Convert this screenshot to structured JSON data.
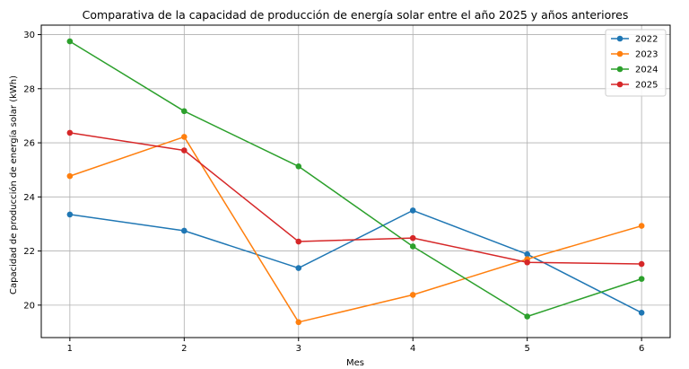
{
  "chart_data": {
    "type": "line",
    "title": "Comparativa de la capacidad de producción de energía solar entre el año 2025 y años anteriores",
    "xlabel": "Mes",
    "ylabel": "Capacidad de producción de energía solar (kWh)",
    "x": [
      1,
      2,
      3,
      4,
      5,
      6
    ],
    "xlim": [
      0.75,
      6.25
    ],
    "ylim": [
      18.8,
      30.35
    ],
    "xticks": [
      1,
      2,
      3,
      4,
      5,
      6
    ],
    "yticks": [
      20,
      22,
      24,
      26,
      28,
      30
    ],
    "grid": true,
    "legend_position": "top-right",
    "series": [
      {
        "name": "2022",
        "color": "#1f77b4",
        "values": [
          23.35,
          22.75,
          21.37,
          23.5,
          21.88,
          19.72
        ]
      },
      {
        "name": "2023",
        "color": "#ff7f0e",
        "values": [
          24.77,
          26.22,
          19.37,
          20.38,
          21.7,
          22.93
        ]
      },
      {
        "name": "2024",
        "color": "#2ca02c",
        "values": [
          29.75,
          27.17,
          25.13,
          22.17,
          19.58,
          20.97
        ]
      },
      {
        "name": "2025",
        "color": "#d62728",
        "values": [
          26.37,
          25.72,
          22.35,
          22.48,
          21.58,
          21.52
        ]
      }
    ]
  }
}
